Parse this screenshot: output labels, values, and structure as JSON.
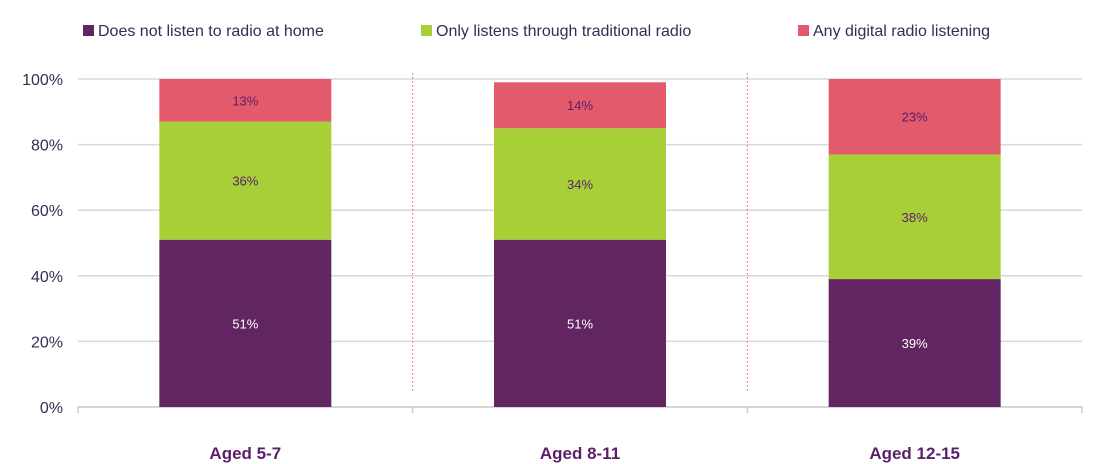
{
  "chart_data": {
    "type": "bar",
    "stacked": true,
    "categories": [
      "Aged 5-7",
      "Aged 8-11",
      "Aged 12-15"
    ],
    "series": [
      {
        "name": "Does not listen to radio at home",
        "values": [
          51,
          51,
          39
        ],
        "color": "#612561",
        "label_color": "#ffffff"
      },
      {
        "name": "Only listens through traditional radio",
        "values": [
          36,
          34,
          38
        ],
        "color": "#a8cf38",
        "label_color": "#5b1f6a"
      },
      {
        "name": "Any digital radio listening",
        "values": [
          13,
          14,
          23
        ],
        "color": "#e35a6a",
        "label_color": "#5b1f6a"
      }
    ],
    "ylim": [
      0,
      100
    ],
    "yticks": [
      "0%",
      "20%",
      "40%",
      "60%",
      "80%",
      "100%"
    ],
    "grid": true,
    "legend_position": "top"
  }
}
